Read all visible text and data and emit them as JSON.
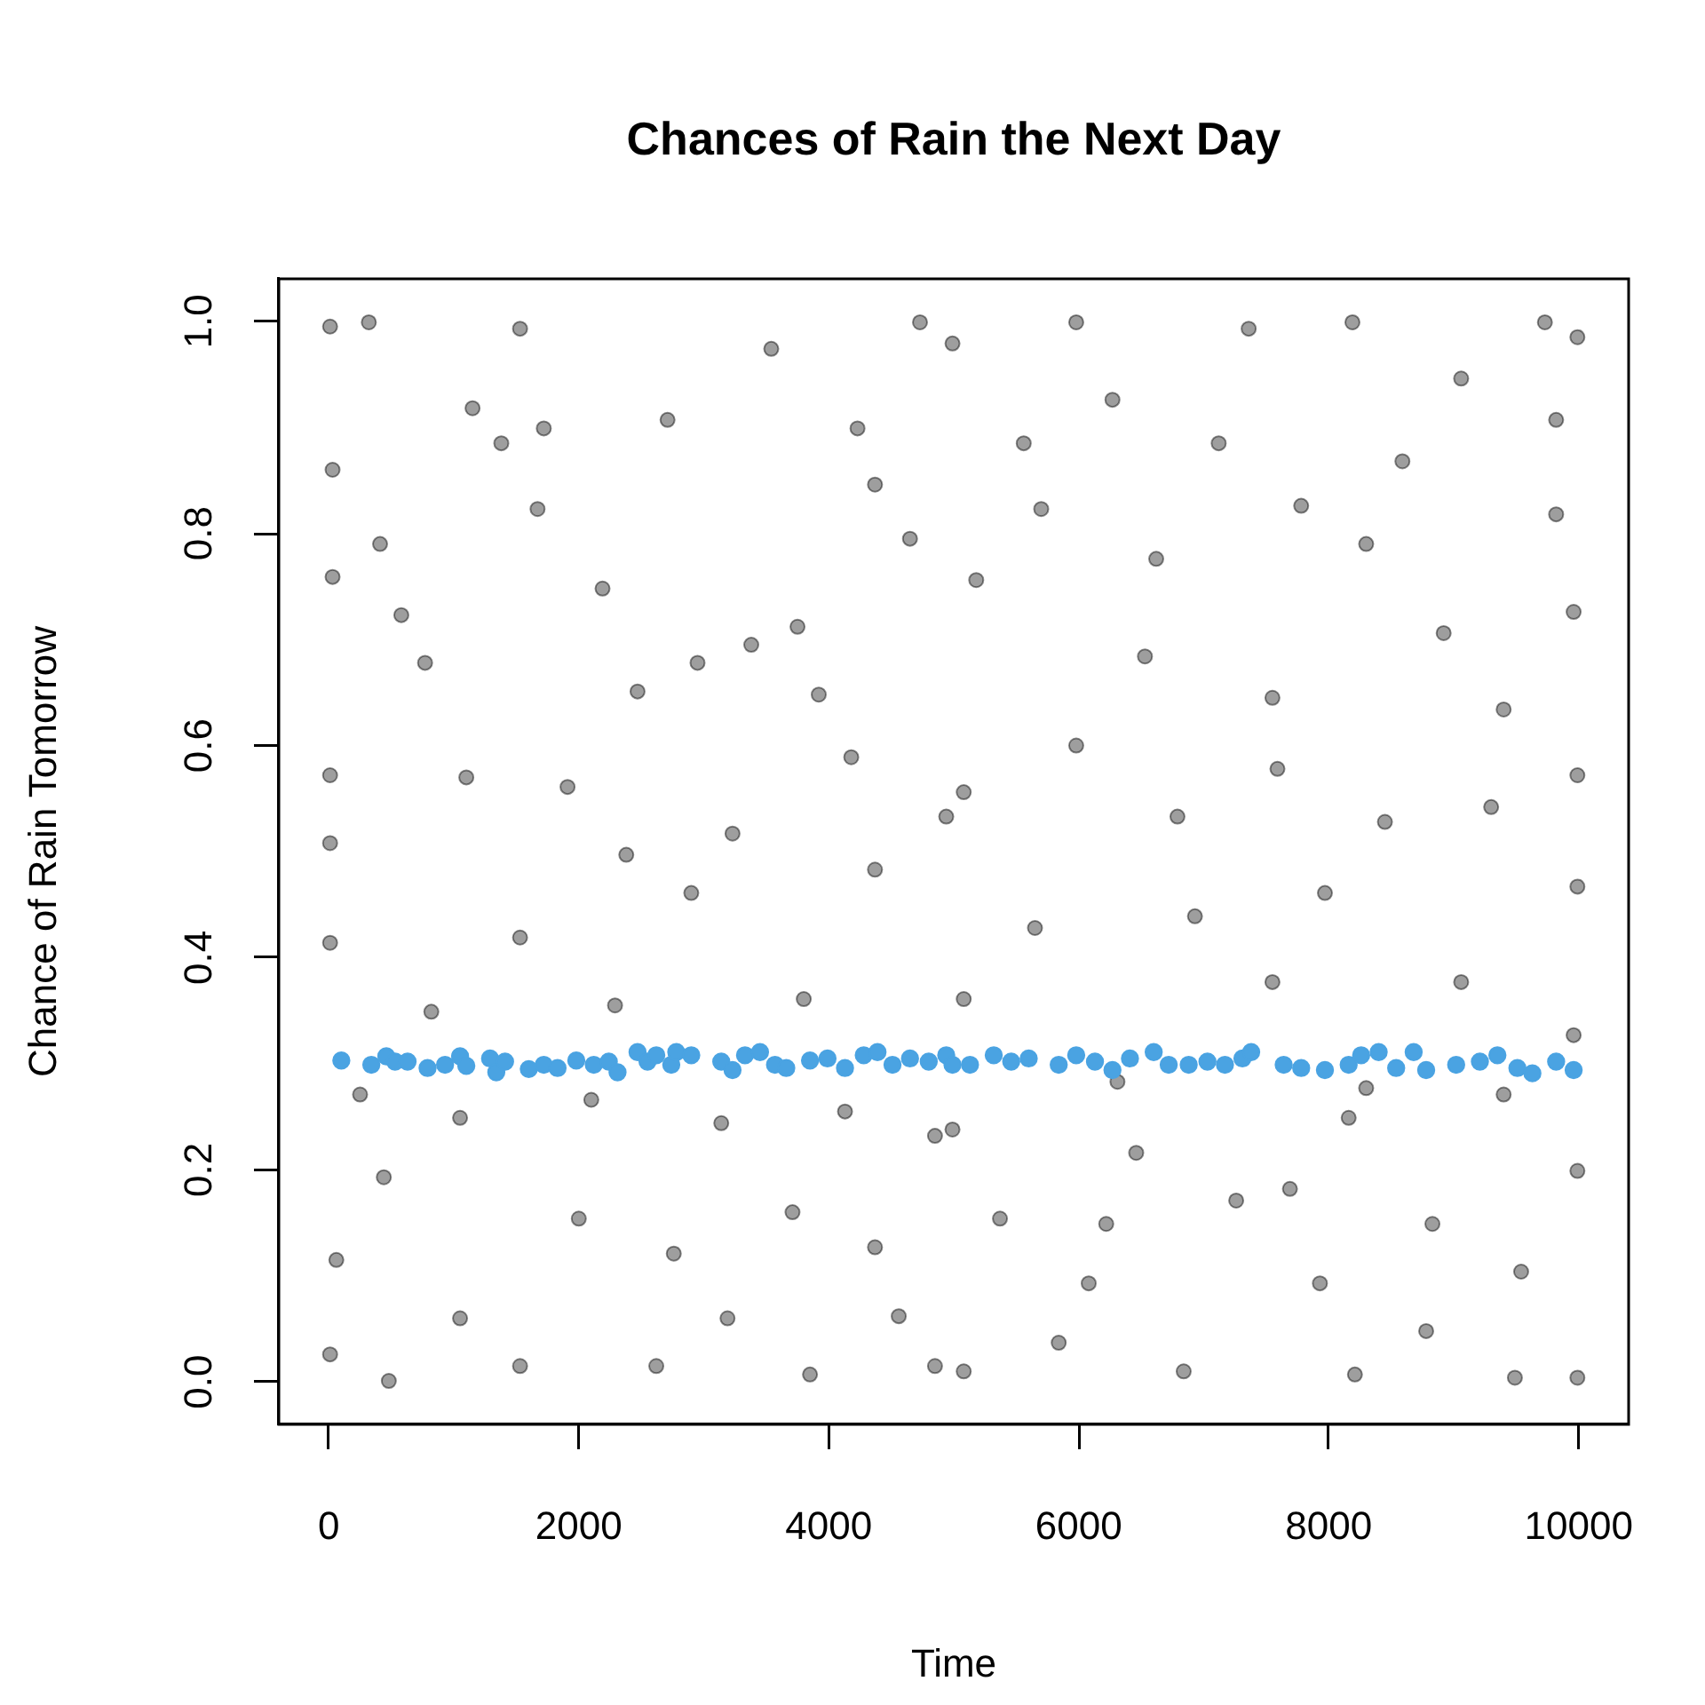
{
  "chart_data": {
    "type": "scatter",
    "title": "Chances of Rain the Next Day",
    "xlabel": "Time",
    "ylabel": "Chance of Rain Tomorrow",
    "xlim": [
      -400,
      10400
    ],
    "ylim": [
      -0.04,
      1.04
    ],
    "xticks": [
      0,
      2000,
      4000,
      6000,
      8000,
      10000
    ],
    "yticks": [
      {
        "value": 0,
        "label": "0.0"
      },
      0.2,
      0.4,
      0.6,
      0.8,
      {
        "value": 1,
        "label": "1.0"
      }
    ],
    "grid": false,
    "legend": false,
    "marker": "circle",
    "series": [
      {
        "color": "#000000",
        "x": [
          10,
          320,
          1530,
          4730,
          3540,
          1150,
          30,
          1720,
          2710,
          4230,
          1380,
          3380,
          3920,
          1100,
          2190,
          30,
          410,
          4370,
          4650,
          2470,
          2950,
          770,
          10,
          1910,
          3230,
          4940,
          3750,
          580,
          1670,
          4180,
          4990,
          5980,
          7360,
          8190,
          9730,
          9990,
          9060,
          7780,
          6620,
          5700,
          9960,
          5180,
          6530,
          8920,
          9820,
          7550,
          9400,
          5980,
          7590,
          9990,
          5080,
          6790,
          8450,
          9300,
          8300,
          7120,
          6270,
          9820,
          8590,
          5560,
          10,
          1530,
          10,
          2900,
          4370,
          2290,
          1050,
          3140,
          4850,
          440,
          2000,
          3710,
          60,
          2760,
          4370,
          10,
          480,
          1530,
          2620,
          3850,
          4850,
          1050,
          3190,
          4560,
          820,
          3800,
          250,
          2100,
          4130,
          2380,
          9990,
          7970,
          5650,
          6930,
          9060,
          5080,
          7550,
          9960,
          4990,
          6460,
          8160,
          9990,
          5370,
          7260,
          8830,
          6080,
          7930,
          9540,
          5080,
          6840,
          8210,
          9490,
          9990,
          5840,
          8780,
          6220,
          7690,
          9400,
          6310,
          8300
        ],
        "values": [
          0.995,
          0.999,
          0.993,
          0.999,
          0.974,
          0.918,
          0.86,
          0.899,
          0.907,
          0.899,
          0.885,
          0.695,
          0.648,
          0.57,
          0.748,
          0.759,
          0.79,
          0.846,
          0.795,
          0.651,
          0.678,
          0.678,
          0.572,
          0.561,
          0.517,
          0.533,
          0.712,
          0.723,
          0.823,
          0.589,
          0.979,
          0.999,
          0.993,
          0.999,
          0.999,
          0.985,
          0.946,
          0.826,
          0.776,
          0.823,
          0.726,
          0.756,
          0.684,
          0.706,
          0.818,
          0.645,
          0.634,
          0.6,
          0.578,
          0.572,
          0.556,
          0.533,
          0.528,
          0.542,
          0.79,
          0.885,
          0.926,
          0.907,
          0.868,
          0.885,
          0.508,
          0.419,
          0.414,
          0.461,
          0.483,
          0.355,
          0.249,
          0.244,
          0.232,
          0.193,
          0.154,
          0.16,
          0.115,
          0.121,
          0.127,
          0.026,
          0.001,
          0.015,
          0.015,
          0.007,
          0.015,
          0.06,
          0.06,
          0.062,
          0.349,
          0.361,
          0.271,
          0.266,
          0.255,
          0.497,
          0.467,
          0.461,
          0.428,
          0.439,
          0.377,
          0.361,
          0.377,
          0.327,
          0.238,
          0.216,
          0.249,
          0.199,
          0.154,
          0.171,
          0.149,
          0.093,
          0.093,
          0.104,
          0.01,
          0.01,
          0.007,
          0.004,
          0.004,
          0.037,
          0.048,
          0.149,
          0.182,
          0.271,
          0.283,
          0.277
        ]
      },
      {
        "color": "#4aa3e2",
        "x": [
          100,
          340,
          460,
          530,
          630,
          790,
          930,
          1050,
          1100,
          1290,
          1340,
          1410,
          1600,
          1720,
          1830,
          1980,
          2120,
          2240,
          2310,
          2470,
          2550,
          2620,
          2740,
          2780,
          2900,
          3140,
          3230,
          3330,
          3450,
          3570,
          3660,
          3850,
          3990,
          4130,
          4280,
          4390,
          4510,
          4650,
          4800,
          4940,
          4990,
          5130,
          5320,
          5460,
          5600,
          5840,
          5980,
          6130,
          6270,
          6410,
          6600,
          6720,
          6880,
          7030,
          7170,
          7310,
          7380,
          7640,
          7780,
          7970,
          8160,
          8260,
          8400,
          8540,
          8680,
          8780,
          9020,
          9210,
          9350,
          9510,
          9630,
          9820,
          9960
        ],
        "values": [
          0.303,
          0.299,
          0.307,
          0.302,
          0.302,
          0.296,
          0.299,
          0.307,
          0.298,
          0.305,
          0.292,
          0.302,
          0.295,
          0.299,
          0.296,
          0.303,
          0.299,
          0.302,
          0.292,
          0.311,
          0.302,
          0.308,
          0.299,
          0.311,
          0.308,
          0.302,
          0.294,
          0.308,
          0.311,
          0.299,
          0.296,
          0.303,
          0.305,
          0.296,
          0.308,
          0.311,
          0.299,
          0.305,
          0.302,
          0.308,
          0.299,
          0.299,
          0.308,
          0.302,
          0.305,
          0.299,
          0.308,
          0.302,
          0.294,
          0.305,
          0.311,
          0.299,
          0.299,
          0.302,
          0.299,
          0.305,
          0.311,
          0.299,
          0.296,
          0.294,
          0.299,
          0.308,
          0.311,
          0.296,
          0.311,
          0.294,
          0.299,
          0.302,
          0.308,
          0.296,
          0.291,
          0.302,
          0.294
        ]
      }
    ]
  }
}
